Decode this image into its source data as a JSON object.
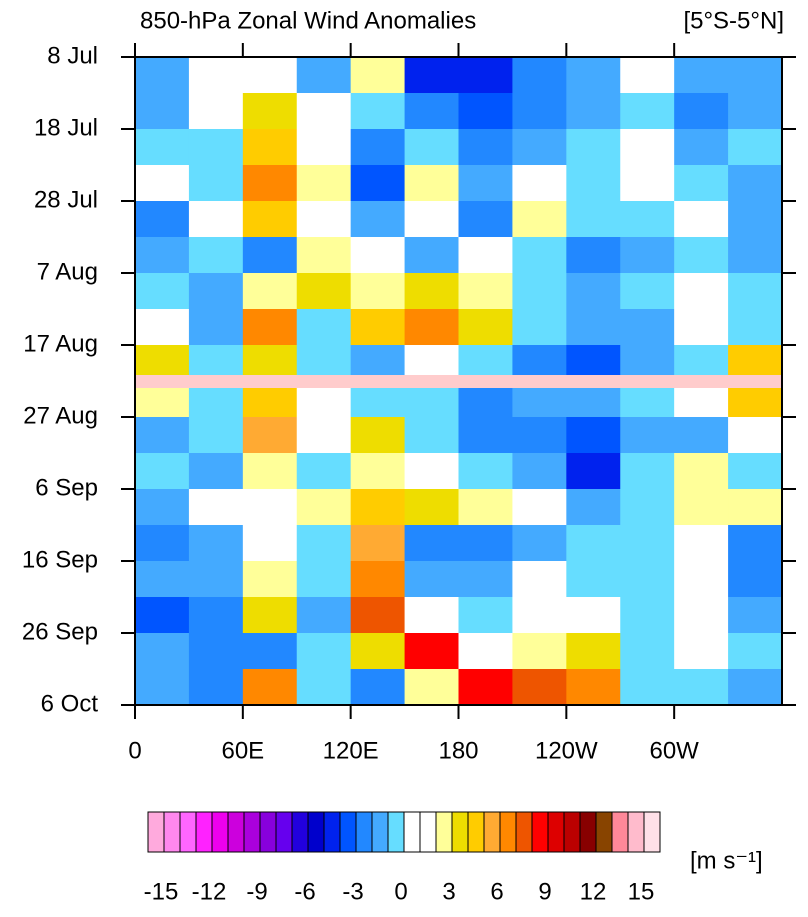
{
  "chart_data": {
    "type": "heatmap",
    "title": "850-hPa Zonal Wind Anomalies",
    "subtitle": "[5°S-5°N]",
    "colorbar_label": "[m s⁻¹]",
    "xlim": [
      0,
      360
    ],
    "xticks": [
      0,
      {
        "value": 60,
        "label": "60E"
      },
      {
        "value": 120,
        "label": "120E"
      },
      180,
      {
        "value": 240,
        "label": "120W"
      },
      {
        "value": 300,
        "label": "60W"
      }
    ],
    "ylim": [
      90,
      0
    ],
    "yticks": [
      {
        "value": 0,
        "label": "8 Jul"
      },
      {
        "value": 10,
        "label": "18 Jul"
      },
      {
        "value": 20,
        "label": "28 Jul"
      },
      {
        "value": 30,
        "label": "7 Aug"
      },
      {
        "value": 40,
        "label": "17 Aug"
      },
      {
        "value": 50,
        "label": "27 Aug"
      },
      {
        "value": 60,
        "label": "6 Sep"
      },
      {
        "value": 70,
        "label": "16 Sep"
      },
      {
        "value": 80,
        "label": "26 Sep"
      },
      {
        "value": 90,
        "label": "6 Oct"
      }
    ],
    "x": [
      15,
      45,
      75,
      105,
      135,
      165,
      195,
      225,
      255,
      285,
      315,
      345
    ],
    "y": [
      2.5,
      7.5,
      12.5,
      17.5,
      22.5,
      27.5,
      32.5,
      37.5,
      42.5,
      47.5,
      52.5,
      57.5,
      62.5,
      67.5,
      72.5,
      77.5,
      82.5,
      87.5
    ],
    "values": [
      [
        -2,
        0,
        1,
        -2,
        2,
        -5,
        -5,
        -3,
        -2,
        0,
        -2,
        -2
      ],
      [
        -2,
        0,
        3,
        1,
        -1,
        -3,
        -4,
        -3,
        -2,
        -1,
        -3,
        -2
      ],
      [
        -1,
        -1,
        4,
        1,
        -3,
        -1,
        -3,
        -2,
        -1,
        0,
        -2,
        -1
      ],
      [
        1,
        -1,
        6,
        2,
        -4,
        2,
        -2,
        1,
        -1,
        0,
        -1,
        -2
      ],
      [
        -3,
        0,
        4,
        1,
        -2,
        1,
        -3,
        2,
        -1,
        -1,
        0,
        -2
      ],
      [
        -2,
        -1,
        -3,
        2,
        1,
        -2,
        0,
        -1,
        -3,
        -2,
        -1,
        -2
      ],
      [
        -1,
        -2,
        2,
        3,
        2,
        3,
        2,
        -1,
        -2,
        -1,
        0,
        -1
      ],
      [
        0,
        -2,
        6,
        -1,
        4,
        6,
        3,
        -1,
        -2,
        -2,
        0,
        -1
      ],
      [
        3,
        -1,
        3,
        -1,
        -2,
        1,
        -1,
        -3,
        -4,
        -2,
        -1,
        4
      ],
      [
        2,
        -1,
        4,
        0,
        -1,
        -1,
        -3,
        -2,
        -2,
        -1,
        0,
        4
      ],
      [
        -2,
        -1,
        5,
        0,
        3,
        -1,
        -3,
        -3,
        -4,
        -2,
        -2,
        1
      ],
      [
        -1,
        -2,
        2,
        -1,
        2,
        1,
        -1,
        -2,
        -5,
        -1,
        2,
        -1
      ],
      [
        -2,
        0,
        1,
        2,
        4,
        3,
        2,
        0,
        -2,
        -1,
        2,
        2
      ],
      [
        -3,
        -2,
        1,
        -1,
        5,
        -3,
        -3,
        -2,
        -1,
        -1,
        1,
        -3
      ],
      [
        -2,
        -2,
        2,
        -1,
        6,
        -2,
        -2,
        0,
        -1,
        -1,
        0,
        -3
      ],
      [
        -4,
        -3,
        3,
        -2,
        7,
        1,
        -1,
        1,
        0,
        -1,
        0,
        -2
      ],
      [
        -2,
        -3,
        -3,
        -1,
        3,
        8,
        1,
        2,
        3,
        -1,
        0,
        -1
      ],
      [
        -2,
        -3,
        6,
        -1,
        -3,
        2,
        8,
        7,
        6,
        -1,
        -1,
        -2
      ]
    ],
    "levels": [
      -15,
      -14,
      -13,
      -12,
      -11,
      -10,
      -9,
      -8,
      -7,
      -6,
      -5,
      -4,
      -3,
      -2,
      -1,
      0,
      1,
      2,
      3,
      4,
      5,
      6,
      7,
      8,
      9,
      10,
      11,
      12,
      13,
      14,
      15
    ],
    "colors": [
      "#ffaadd",
      "#ff88ee",
      "#ff66ff",
      "#ff22ff",
      "#ee00ee",
      "#cc00dd",
      "#aa00dd",
      "#8800dd",
      "#6600ee",
      "#2200dd",
      "#0000cc",
      "#0022ee",
      "#0055ff",
      "#2288ff",
      "#44aaff",
      "#66ddff",
      "#ffffff",
      "#ffffff",
      "#ffff99",
      "#eedd00",
      "#ffcc00",
      "#ffaa33",
      "#ff8800",
      "#ee5500",
      "#ff0000",
      "#dd0000",
      "#bb0000",
      "#880000",
      "#884400",
      "#ff8899",
      "#ffbbcc",
      "#ffe0e8"
    ],
    "colorbar_ticks": [
      -15,
      -12,
      -9,
      -6,
      -3,
      0,
      3,
      6,
      9,
      12,
      15
    ]
  }
}
